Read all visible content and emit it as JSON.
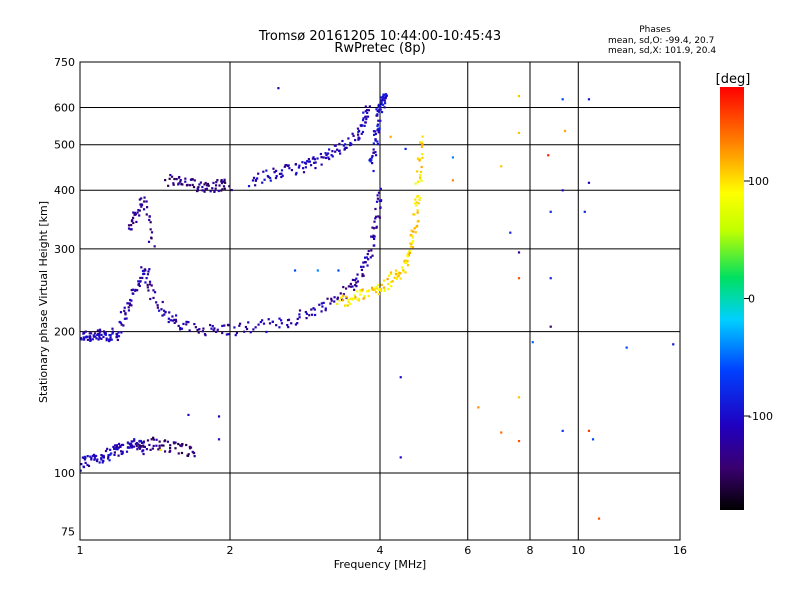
{
  "chart_data": {
    "type": "scatter",
    "title": "Tromsø 20161205 10:44:00-10:45:43",
    "subtitle": "RwPretec (8p)",
    "xlabel": "Frequency [MHz]",
    "ylabel": "Stationary phase Virtual Height [km]",
    "x_scale": "log",
    "y_scale": "log",
    "xlim": [
      1,
      16
    ],
    "ylim": [
      72,
      750
    ],
    "x_ticks": [
      1,
      2,
      4,
      6,
      8,
      10,
      16
    ],
    "y_ticks": [
      75,
      100,
      200,
      300,
      400,
      500,
      600,
      750
    ],
    "x_gridlines": [
      2,
      4,
      6,
      8,
      10
    ],
    "y_gridlines": [
      100,
      200,
      300,
      400,
      500,
      600
    ],
    "grid": true,
    "legend": "colorbar-right",
    "colorbar": {
      "label": "[deg]",
      "range": [
        -180,
        180
      ],
      "ticks": [
        -100,
        0,
        100
      ]
    },
    "stats": {
      "heading": "Phases",
      "line_o": "mean, sd,O: -99.4, 20.7",
      "line_x": "mean, sd,X: 101.9, 20.4"
    },
    "traces": [
      {
        "x": [
          1.0,
          1.04,
          1.08,
          1.12,
          1.16,
          1.2
        ],
        "y": [
          196,
          196,
          196,
          196,
          197,
          198
        ],
        "phase": -110
      },
      {
        "x": [
          1.2,
          1.25,
          1.3,
          1.35,
          1.4,
          1.5,
          1.6,
          1.8,
          2.0,
          2.3,
          2.6,
          2.9,
          3.2,
          3.5,
          3.7,
          3.85,
          3.95,
          4.0
        ],
        "y": [
          210,
          225,
          250,
          275,
          240,
          215,
          205,
          202,
          202,
          205,
          210,
          220,
          232,
          248,
          270,
          300,
          350,
          400
        ],
        "phase": -120
      },
      {
        "x": [
          1.25,
          1.3,
          1.35,
          1.4
        ],
        "y": [
          330,
          360,
          380,
          300
        ],
        "phase": -130
      },
      {
        "x": [
          1.5,
          1.6,
          1.7,
          1.8,
          1.9,
          2.0
        ],
        "y": [
          420,
          415,
          410,
          408,
          410,
          412
        ],
        "phase": -135
      },
      {
        "x": [
          2.2,
          2.4,
          2.6,
          2.8,
          3.0,
          3.2,
          3.4,
          3.6,
          3.7,
          3.8
        ],
        "y": [
          420,
          430,
          440,
          450,
          460,
          480,
          500,
          520,
          560,
          600
        ],
        "phase": -110
      },
      {
        "x": [
          3.85,
          3.9,
          3.95,
          4.0,
          4.05,
          4.1
        ],
        "y": [
          450,
          500,
          550,
          600,
          620,
          640
        ],
        "phase": -100
      },
      {
        "x": [
          3.3,
          3.5,
          3.7,
          3.9,
          4.1,
          4.3,
          4.5,
          4.6,
          4.7,
          4.75,
          4.8,
          4.85
        ],
        "y": [
          232,
          235,
          240,
          245,
          252,
          262,
          275,
          300,
          330,
          380,
          450,
          520
        ],
        "phase": 100
      },
      {
        "x": [
          1.0,
          1.05,
          1.1,
          1.15,
          1.2,
          1.25,
          1.3,
          1.35
        ],
        "y": [
          104,
          106,
          108,
          110,
          112,
          114,
          115,
          112
        ],
        "phase": -110
      },
      {
        "x": [
          1.3,
          1.4,
          1.5,
          1.6,
          1.7
        ],
        "y": [
          113,
          116,
          114,
          112,
          110
        ],
        "phase": -140
      }
    ],
    "scatter_points": [
      {
        "x": 2.5,
        "y": 660,
        "phase": -120
      },
      {
        "x": 7.6,
        "y": 635,
        "phase": 110
      },
      {
        "x": 9.3,
        "y": 625,
        "phase": -60
      },
      {
        "x": 10.5,
        "y": 625,
        "phase": -90
      },
      {
        "x": 7.6,
        "y": 530,
        "phase": 110
      },
      {
        "x": 9.4,
        "y": 535,
        "phase": 120
      },
      {
        "x": 8.7,
        "y": 475,
        "phase": 170
      },
      {
        "x": 7.0,
        "y": 450,
        "phase": 110
      },
      {
        "x": 9.3,
        "y": 400,
        "phase": -100
      },
      {
        "x": 10.5,
        "y": 415,
        "phase": -110
      },
      {
        "x": 8.8,
        "y": 360,
        "phase": -80
      },
      {
        "x": 10.3,
        "y": 360,
        "phase": -80
      },
      {
        "x": 7.3,
        "y": 325,
        "phase": -80
      },
      {
        "x": 7.6,
        "y": 295,
        "phase": -130
      },
      {
        "x": 7.6,
        "y": 260,
        "phase": 150
      },
      {
        "x": 8.8,
        "y": 260,
        "phase": -80
      },
      {
        "x": 8.8,
        "y": 205,
        "phase": -150
      },
      {
        "x": 8.1,
        "y": 190,
        "phase": -50
      },
      {
        "x": 12.5,
        "y": 185,
        "phase": -60
      },
      {
        "x": 15.5,
        "y": 188,
        "phase": -90
      },
      {
        "x": 6.3,
        "y": 138,
        "phase": 130
      },
      {
        "x": 7.6,
        "y": 145,
        "phase": 110
      },
      {
        "x": 7.0,
        "y": 122,
        "phase": 140
      },
      {
        "x": 7.6,
        "y": 117,
        "phase": 150
      },
      {
        "x": 9.3,
        "y": 123,
        "phase": -70
      },
      {
        "x": 10.5,
        "y": 123,
        "phase": 160
      },
      {
        "x": 10.7,
        "y": 118,
        "phase": -60
      },
      {
        "x": 11.0,
        "y": 80,
        "phase": 150
      },
      {
        "x": 4.5,
        "y": 490,
        "phase": -80
      },
      {
        "x": 5.6,
        "y": 470,
        "phase": -40
      },
      {
        "x": 4.2,
        "y": 520,
        "phase": 120
      },
      {
        "x": 4.4,
        "y": 160,
        "phase": -100
      },
      {
        "x": 4.4,
        "y": 108,
        "phase": -100
      },
      {
        "x": 3.0,
        "y": 270,
        "phase": -40
      },
      {
        "x": 2.7,
        "y": 270,
        "phase": -60
      },
      {
        "x": 3.3,
        "y": 270,
        "phase": -60
      },
      {
        "x": 5.6,
        "y": 420,
        "phase": 130
      },
      {
        "x": 1.45,
        "y": 112,
        "phase": 100
      },
      {
        "x": 1.9,
        "y": 118,
        "phase": -100
      },
      {
        "x": 1.9,
        "y": 132,
        "phase": -110
      },
      {
        "x": 1.65,
        "y": 133,
        "phase": -100
      }
    ]
  }
}
